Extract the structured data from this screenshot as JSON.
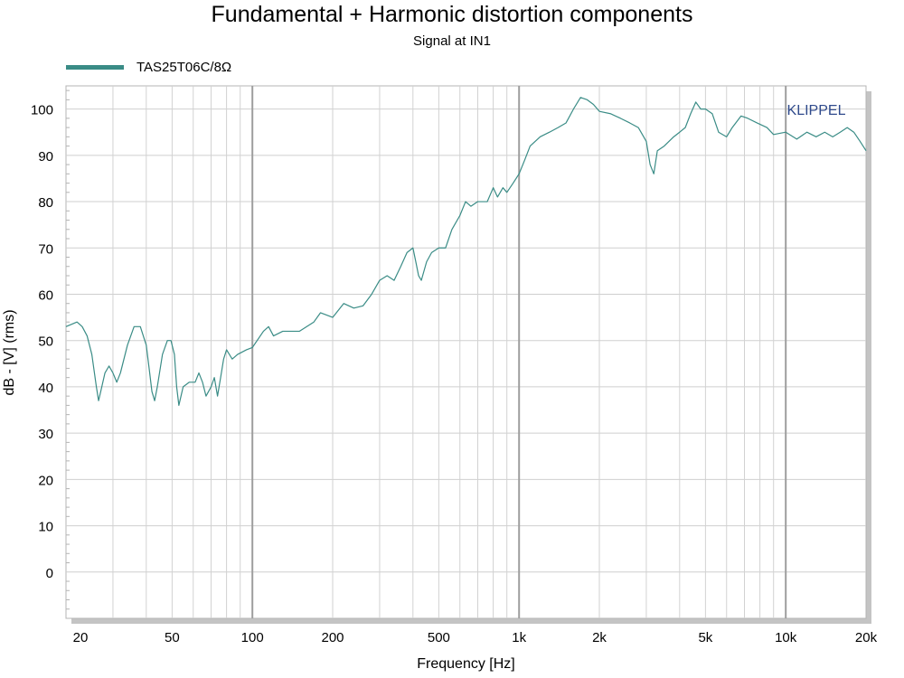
{
  "chart_data": {
    "type": "line",
    "title": "Fundamental + Harmonic distortion components",
    "subtitle": "Signal at IN1",
    "xlabel": "Frequency [Hz]",
    "ylabel": "dB - [V]  (rms)",
    "x_scale": "log",
    "xlim": [
      20,
      20000
    ],
    "ylim": [
      -10,
      105
    ],
    "x_ticks": [
      {
        "value": 20,
        "label": "20"
      },
      {
        "value": 50,
        "label": "50"
      },
      {
        "value": 100,
        "label": "100"
      },
      {
        "value": 200,
        "label": "200"
      },
      {
        "value": 500,
        "label": "500"
      },
      {
        "value": 1000,
        "label": "1k"
      },
      {
        "value": 2000,
        "label": "2k"
      },
      {
        "value": 5000,
        "label": "5k"
      },
      {
        "value": 10000,
        "label": "10k"
      },
      {
        "value": 20000,
        "label": "20k"
      }
    ],
    "y_ticks": [
      0,
      10,
      20,
      30,
      40,
      50,
      60,
      70,
      80,
      90,
      100
    ],
    "grid": true,
    "watermark": "KLIPPEL",
    "legend_position": "top-left",
    "series": [
      {
        "name": "TAS25T06C/8Ω",
        "color": "#3a8c86",
        "points": [
          [
            20,
            53
          ],
          [
            22,
            54
          ],
          [
            23,
            53
          ],
          [
            24,
            51
          ],
          [
            25,
            47
          ],
          [
            26,
            40
          ],
          [
            26.5,
            37
          ],
          [
            27,
            39
          ],
          [
            28,
            43
          ],
          [
            29,
            44.5
          ],
          [
            30,
            43
          ],
          [
            31,
            41
          ],
          [
            32,
            43
          ],
          [
            34,
            49
          ],
          [
            36,
            53
          ],
          [
            38,
            53
          ],
          [
            40,
            49
          ],
          [
            41,
            44
          ],
          [
            42,
            39
          ],
          [
            43,
            37
          ],
          [
            44,
            40
          ],
          [
            46,
            47
          ],
          [
            48,
            50
          ],
          [
            49.5,
            50
          ],
          [
            51,
            47
          ],
          [
            52,
            40
          ],
          [
            53,
            36
          ],
          [
            55,
            40
          ],
          [
            58,
            41
          ],
          [
            61,
            41
          ],
          [
            63,
            43
          ],
          [
            65,
            41
          ],
          [
            67,
            38
          ],
          [
            70,
            40
          ],
          [
            72,
            42
          ],
          [
            74,
            38
          ],
          [
            76,
            42
          ],
          [
            78,
            46
          ],
          [
            80,
            48
          ],
          [
            84,
            46
          ],
          [
            88,
            47
          ],
          [
            95,
            48
          ],
          [
            100,
            48.5
          ],
          [
            110,
            52
          ],
          [
            115,
            53
          ],
          [
            120,
            51
          ],
          [
            130,
            52
          ],
          [
            150,
            52
          ],
          [
            170,
            54
          ],
          [
            180,
            56
          ],
          [
            200,
            55
          ],
          [
            220,
            58
          ],
          [
            240,
            57
          ],
          [
            260,
            57.5
          ],
          [
            280,
            60
          ],
          [
            300,
            63
          ],
          [
            320,
            64
          ],
          [
            340,
            63
          ],
          [
            360,
            66
          ],
          [
            380,
            69
          ],
          [
            400,
            70
          ],
          [
            410,
            67
          ],
          [
            420,
            64
          ],
          [
            430,
            63
          ],
          [
            450,
            67
          ],
          [
            470,
            69
          ],
          [
            500,
            70
          ],
          [
            530,
            70
          ],
          [
            560,
            74
          ],
          [
            600,
            77
          ],
          [
            630,
            80
          ],
          [
            660,
            79
          ],
          [
            700,
            80
          ],
          [
            760,
            80
          ],
          [
            800,
            83
          ],
          [
            830,
            81
          ],
          [
            870,
            83
          ],
          [
            900,
            82
          ],
          [
            950,
            84
          ],
          [
            1000,
            86
          ],
          [
            1050,
            89
          ],
          [
            1100,
            92
          ],
          [
            1200,
            94
          ],
          [
            1300,
            95
          ],
          [
            1400,
            96
          ],
          [
            1500,
            97
          ],
          [
            1600,
            100
          ],
          [
            1700,
            102.5
          ],
          [
            1800,
            102
          ],
          [
            1900,
            101
          ],
          [
            2000,
            99.5
          ],
          [
            2200,
            99
          ],
          [
            2400,
            98
          ],
          [
            2600,
            97
          ],
          [
            2800,
            96
          ],
          [
            3000,
            93
          ],
          [
            3100,
            88
          ],
          [
            3200,
            86
          ],
          [
            3300,
            91
          ],
          [
            3500,
            92
          ],
          [
            3800,
            94
          ],
          [
            4000,
            95
          ],
          [
            4200,
            96
          ],
          [
            4400,
            99
          ],
          [
            4600,
            101.5
          ],
          [
            4800,
            100
          ],
          [
            5000,
            100
          ],
          [
            5300,
            99
          ],
          [
            5600,
            95
          ],
          [
            6000,
            94
          ],
          [
            6300,
            96
          ],
          [
            6800,
            98.5
          ],
          [
            7200,
            98
          ],
          [
            7800,
            97
          ],
          [
            8500,
            96
          ],
          [
            9000,
            94.5
          ],
          [
            10000,
            95
          ],
          [
            11000,
            93.5
          ],
          [
            12000,
            95
          ],
          [
            13000,
            94
          ],
          [
            14000,
            95
          ],
          [
            15000,
            94
          ],
          [
            16000,
            95
          ],
          [
            17000,
            96
          ],
          [
            18000,
            95
          ],
          [
            19000,
            93
          ],
          [
            20000,
            91
          ]
        ]
      }
    ]
  }
}
